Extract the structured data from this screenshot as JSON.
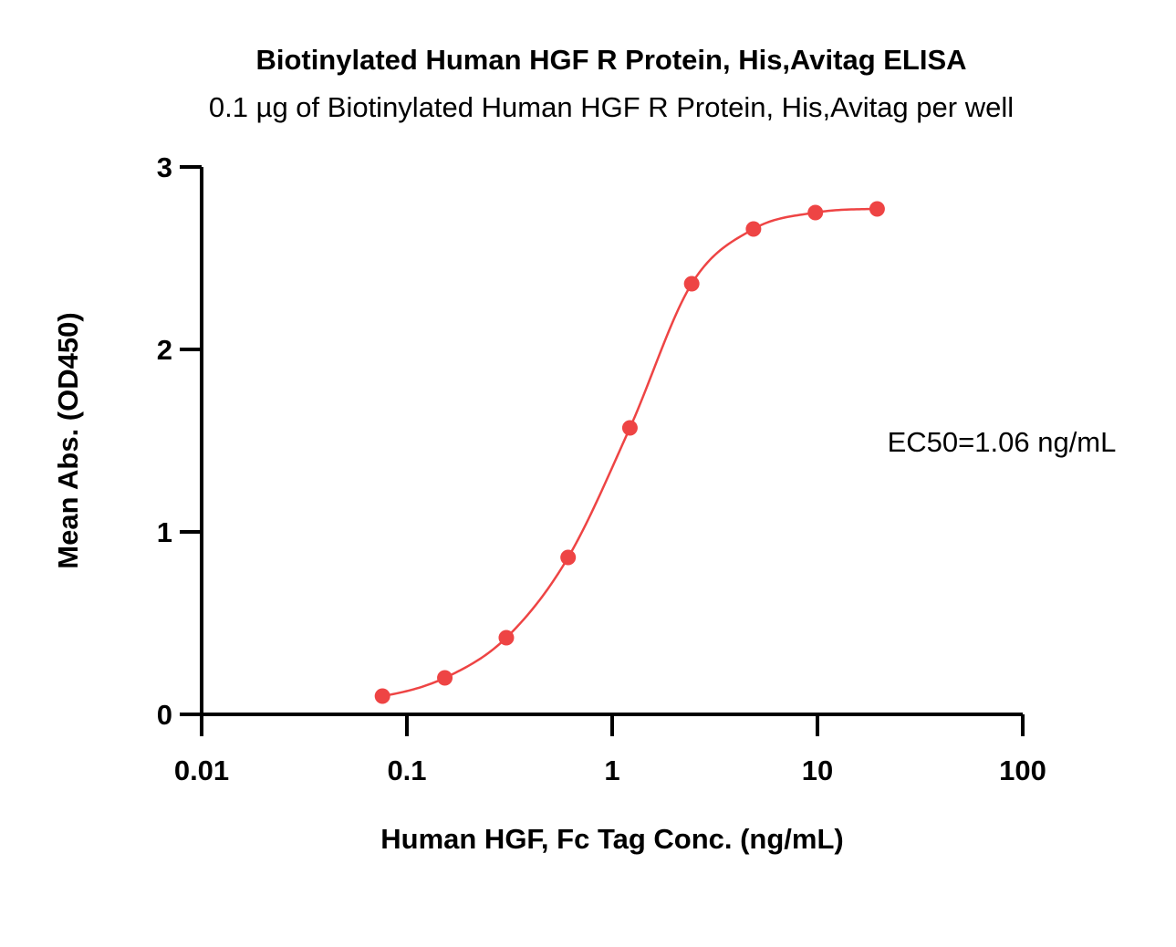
{
  "chart_data": {
    "type": "scatter",
    "title": "Biotinylated Human HGF R Protein, His,Avitag ELISA",
    "subtitle": "0.1 µg of Biotinylated Human HGF R Protein, His,Avitag per well",
    "xlabel": "Human HGF, Fc Tag Conc. (ng/mL)",
    "ylabel": "Mean Abs. (OD450)",
    "x_scale": "log",
    "xlim": [
      0.01,
      100
    ],
    "ylim": [
      0,
      3
    ],
    "x_ticks": [
      0.01,
      0.1,
      1,
      10,
      100
    ],
    "x_tick_labels": [
      "0.01",
      "0.1",
      "1",
      "10",
      "100"
    ],
    "y_ticks": [
      0,
      1,
      2,
      3
    ],
    "y_tick_labels": [
      "0",
      "1",
      "2",
      "3"
    ],
    "grid": false,
    "legend": "none",
    "series": [
      {
        "x": [
          0.076,
          0.153,
          0.305,
          0.61,
          1.22,
          2.44,
          4.88,
          9.77,
          19.53
        ],
        "y": [
          0.1,
          0.2,
          0.42,
          0.86,
          1.57,
          2.36,
          2.66,
          2.75,
          2.77
        ],
        "fit": "4PL",
        "color": "#EE4444"
      }
    ],
    "annotations": [
      "EC50=1.06 ng/mL"
    ]
  }
}
